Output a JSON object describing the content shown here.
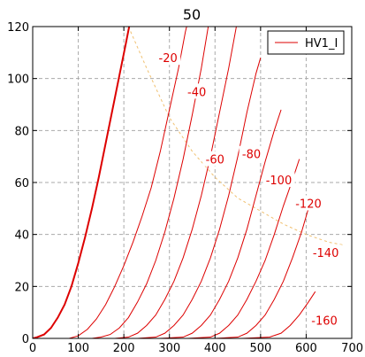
{
  "chart_data": {
    "type": "line",
    "title": "50",
    "xlabel": "",
    "ylabel": "",
    "xlim": [
      0,
      700
    ],
    "ylim": [
      0,
      120
    ],
    "x_ticks": [
      "0",
      "100",
      "200",
      "300",
      "400",
      "500",
      "600",
      "700"
    ],
    "y_ticks": [
      "0",
      "20",
      "40",
      "60",
      "80",
      "100",
      "120"
    ],
    "grid": true,
    "legend": {
      "placement": "top-right",
      "entries": [
        "HV1_I"
      ]
    },
    "colors": {
      "curves": "#dd0000",
      "load_line": "#f0c070",
      "grid": "#aaaaaa"
    },
    "series": [
      {
        "name": "HV1_I",
        "label": "",
        "points": [
          [
            0,
            0
          ],
          [
            10,
            0.5
          ],
          [
            25,
            1.5
          ],
          [
            40,
            4
          ],
          [
            55,
            8
          ],
          [
            70,
            13
          ],
          [
            85,
            20
          ],
          [
            100,
            29
          ],
          [
            115,
            39
          ],
          [
            130,
            50
          ],
          [
            145,
            62
          ],
          [
            160,
            75
          ],
          [
            175,
            88
          ],
          [
            190,
            101
          ],
          [
            205,
            114
          ],
          [
            215,
            123
          ]
        ]
      },
      {
        "label": "-20",
        "points": [
          [
            80,
            0
          ],
          [
            100,
            1
          ],
          [
            120,
            3.5
          ],
          [
            140,
            7.5
          ],
          [
            160,
            13
          ],
          [
            180,
            20
          ],
          [
            200,
            28
          ],
          [
            220,
            37
          ],
          [
            240,
            47
          ],
          [
            260,
            58
          ],
          [
            280,
            72
          ],
          [
            300,
            88
          ],
          [
            320,
            104
          ],
          [
            335,
            118
          ],
          [
            342,
            123
          ]
        ]
      },
      {
        "label": "-40",
        "points": [
          [
            130,
            0
          ],
          [
            150,
            0.5
          ],
          [
            170,
            1.5
          ],
          [
            190,
            4
          ],
          [
            210,
            8
          ],
          [
            230,
            14
          ],
          [
            250,
            21
          ],
          [
            270,
            30
          ],
          [
            290,
            41
          ],
          [
            310,
            54
          ],
          [
            330,
            69
          ],
          [
            350,
            86
          ],
          [
            370,
            104
          ],
          [
            388,
            123
          ]
        ]
      },
      {
        "label": "-60",
        "points": [
          [
            180,
            0
          ],
          [
            210,
            0.5
          ],
          [
            230,
            2
          ],
          [
            250,
            5
          ],
          [
            270,
            9
          ],
          [
            290,
            15
          ],
          [
            310,
            22
          ],
          [
            330,
            31
          ],
          [
            350,
            42
          ],
          [
            370,
            55
          ],
          [
            390,
            70
          ],
          [
            410,
            87
          ],
          [
            430,
            104
          ],
          [
            450,
            123
          ]
        ]
      },
      {
        "label": "-80",
        "points": [
          [
            230,
            0
          ],
          [
            270,
            0.5
          ],
          [
            290,
            2
          ],
          [
            310,
            5
          ],
          [
            330,
            9
          ],
          [
            350,
            15
          ],
          [
            370,
            22
          ],
          [
            390,
            31
          ],
          [
            410,
            42
          ],
          [
            430,
            55
          ],
          [
            450,
            70
          ],
          [
            470,
            87
          ],
          [
            490,
            102
          ],
          [
            500,
            108
          ]
        ]
      },
      {
        "label": "-100",
        "points": [
          [
            280,
            0
          ],
          [
            330,
            0.5
          ],
          [
            350,
            2
          ],
          [
            370,
            5
          ],
          [
            390,
            9
          ],
          [
            410,
            15
          ],
          [
            430,
            22
          ],
          [
            450,
            31
          ],
          [
            470,
            42
          ],
          [
            490,
            55
          ],
          [
            510,
            68
          ],
          [
            530,
            80
          ],
          [
            545,
            88
          ]
        ]
      },
      {
        "label": "-120",
        "points": [
          [
            340,
            0
          ],
          [
            390,
            0.5
          ],
          [
            410,
            2
          ],
          [
            430,
            5
          ],
          [
            450,
            9
          ],
          [
            470,
            15
          ],
          [
            490,
            22
          ],
          [
            510,
            30
          ],
          [
            530,
            40
          ],
          [
            550,
            51
          ],
          [
            570,
            61
          ],
          [
            585,
            69
          ]
        ]
      },
      {
        "label": "-140",
        "points": [
          [
            400,
            0
          ],
          [
            450,
            0.5
          ],
          [
            470,
            2
          ],
          [
            490,
            5
          ],
          [
            510,
            9
          ],
          [
            530,
            15
          ],
          [
            550,
            22
          ],
          [
            570,
            31
          ],
          [
            590,
            41
          ],
          [
            605,
            50
          ]
        ]
      },
      {
        "label": "-160",
        "points": [
          [
            460,
            0
          ],
          [
            520,
            0.5
          ],
          [
            545,
            2
          ],
          [
            565,
            5
          ],
          [
            585,
            9
          ],
          [
            605,
            14
          ],
          [
            620,
            18
          ]
        ]
      }
    ],
    "load_line": {
      "points": [
        [
          210,
          120
        ],
        [
          250,
          104
        ],
        [
          300,
          85
        ],
        [
          350,
          72
        ],
        [
          400,
          62
        ],
        [
          450,
          54
        ],
        [
          500,
          49
        ],
        [
          550,
          44
        ],
        [
          600,
          40
        ],
        [
          650,
          37
        ],
        [
          680,
          36
        ]
      ]
    },
    "curve_labels": [
      {
        "text": "-20",
        "x": 297,
        "y": 108
      },
      {
        "text": "-40",
        "x": 360,
        "y": 95
      },
      {
        "text": "-60",
        "x": 400,
        "y": 69
      },
      {
        "text": "-80",
        "x": 480,
        "y": 71
      },
      {
        "text": "-100",
        "x": 540,
        "y": 61
      },
      {
        "text": "-120",
        "x": 605,
        "y": 52
      },
      {
        "text": "-140",
        "x": 643,
        "y": 33
      },
      {
        "text": "-160",
        "x": 640,
        "y": 7
      }
    ]
  }
}
